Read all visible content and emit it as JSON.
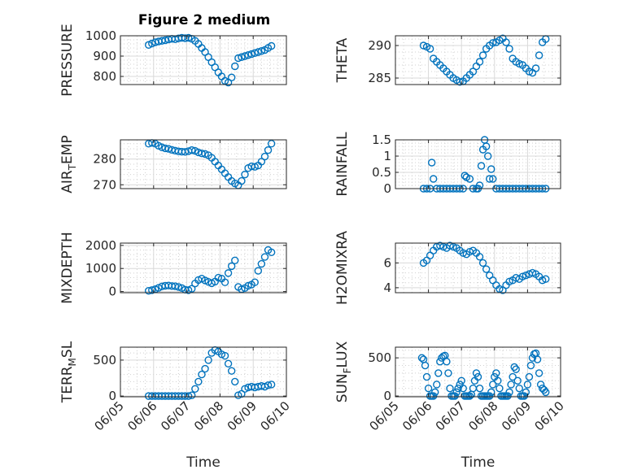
{
  "figure": {
    "title": "Figure 2 medium",
    "marker_color": "#0072BD",
    "grid": true,
    "minor_grid": true
  },
  "chart_data": [
    {
      "type": "scatter",
      "id": "pressure",
      "ylabel": "PRESSURE",
      "ylabel_sub": "",
      "ylabel_tail": "",
      "xlabel": "",
      "title": "Figure 2 medium",
      "ylim": [
        760,
        1000
      ],
      "yticks": [
        800,
        900,
        1000
      ],
      "ytick_labels": [
        "800",
        "900",
        "1000"
      ],
      "show_xticks": false,
      "x": [
        5.85,
        5.95,
        6.05,
        6.15,
        6.25,
        6.35,
        6.45,
        6.55,
        6.65,
        6.75,
        6.85,
        6.95,
        7.05,
        7.15,
        7.25,
        7.35,
        7.45,
        7.55,
        7.65,
        7.75,
        7.85,
        7.95,
        8.05,
        8.15,
        8.25,
        8.35,
        8.45,
        8.55,
        8.65,
        8.75,
        8.85,
        8.95,
        9.05,
        9.15,
        9.25,
        9.35,
        9.45,
        9.55
      ],
      "y": [
        955,
        962,
        968,
        972,
        975,
        978,
        982,
        985,
        983,
        987,
        990,
        988,
        990,
        985,
        975,
        960,
        940,
        920,
        895,
        870,
        845,
        820,
        800,
        778,
        770,
        795,
        850,
        890,
        895,
        900,
        905,
        910,
        915,
        920,
        925,
        930,
        940,
        950
      ]
    },
    {
      "type": "scatter",
      "id": "theta",
      "ylabel": "THETA",
      "ylabel_sub": "",
      "ylabel_tail": "",
      "xlabel": "",
      "ylim": [
        284,
        291.5
      ],
      "yticks": [
        285,
        290
      ],
      "ytick_labels": [
        "285",
        "290"
      ],
      "show_xticks": false,
      "x": [
        5.85,
        5.95,
        6.05,
        6.15,
        6.25,
        6.35,
        6.45,
        6.55,
        6.65,
        6.75,
        6.85,
        6.95,
        7.05,
        7.15,
        7.25,
        7.35,
        7.45,
        7.55,
        7.65,
        7.75,
        7.85,
        7.95,
        8.05,
        8.15,
        8.25,
        8.35,
        8.45,
        8.55,
        8.65,
        8.75,
        8.85,
        8.95,
        9.05,
        9.15,
        9.25,
        9.35,
        9.45,
        9.55
      ],
      "y": [
        290,
        289.8,
        289.5,
        288,
        287.5,
        287,
        286.5,
        286,
        285.5,
        285,
        284.7,
        284.4,
        284.5,
        285,
        285.5,
        286,
        286.8,
        287.5,
        288.5,
        289.5,
        290,
        290.4,
        290.5,
        290.8,
        291.1,
        290.5,
        289.5,
        288,
        287.5,
        287.2,
        287,
        286.5,
        286,
        285.8,
        286.5,
        288.5,
        290.5,
        291
      ]
    },
    {
      "type": "scatter",
      "id": "air-temp",
      "ylabel": "AIR",
      "ylabel_sub": "T",
      "ylabel_tail": "EMP",
      "xlabel": "",
      "ylim": [
        268.5,
        287.5
      ],
      "yticks": [
        270,
        280
      ],
      "ytick_labels": [
        "270",
        "280"
      ],
      "show_xticks": false,
      "x": [
        5.85,
        5.95,
        6.05,
        6.15,
        6.25,
        6.35,
        6.45,
        6.55,
        6.65,
        6.75,
        6.85,
        6.95,
        7.05,
        7.15,
        7.25,
        7.35,
        7.45,
        7.55,
        7.65,
        7.75,
        7.85,
        7.95,
        8.05,
        8.15,
        8.25,
        8.35,
        8.45,
        8.55,
        8.65,
        8.75,
        8.85,
        8.95,
        9.05,
        9.15,
        9.25,
        9.35,
        9.45,
        9.55
      ],
      "y": [
        286,
        286.3,
        286,
        285.2,
        284.6,
        284.2,
        284,
        283.6,
        283.3,
        283,
        282.9,
        282.8,
        283.1,
        283.5,
        283.2,
        282.6,
        282.2,
        282,
        281.5,
        280.5,
        279,
        277.5,
        276,
        274.5,
        273,
        271.5,
        270.5,
        269.8,
        271.5,
        274,
        276.5,
        277.2,
        277,
        277.5,
        279,
        281,
        283.5,
        286
      ]
    },
    {
      "type": "scatter",
      "id": "rainfall",
      "ylabel": "RAINFALL",
      "ylabel_sub": "",
      "ylabel_tail": "",
      "xlabel": "",
      "ylim": [
        0,
        1.5
      ],
      "yticks": [
        0,
        0.5,
        1,
        1.5
      ],
      "ytick_labels": [
        "0",
        "0.5",
        "1",
        "1.5"
      ],
      "show_xticks": false,
      "x": [
        5.85,
        5.95,
        6.05,
        6.1,
        6.15,
        6.25,
        6.35,
        6.45,
        6.55,
        6.65,
        6.75,
        6.85,
        6.95,
        7.05,
        7.1,
        7.15,
        7.25,
        7.35,
        7.45,
        7.5,
        7.55,
        7.6,
        7.65,
        7.7,
        7.75,
        7.8,
        7.85,
        7.9,
        7.95,
        8.05,
        8.15,
        8.25,
        8.35,
        8.45,
        8.55,
        8.65,
        8.75,
        8.85,
        8.95,
        9.05,
        9.15,
        9.25,
        9.35,
        9.45,
        9.55
      ],
      "y": [
        0,
        0,
        0,
        0.8,
        0.3,
        0,
        0,
        0,
        0,
        0,
        0,
        0,
        0,
        0,
        0.4,
        0.35,
        0.3,
        0,
        0,
        0,
        0.1,
        0.7,
        1.2,
        1.5,
        1.3,
        1,
        0.3,
        0.6,
        0.3,
        0,
        0,
        0,
        0,
        0,
        0,
        0,
        0,
        0,
        0,
        0,
        0,
        0,
        0,
        0,
        0
      ]
    },
    {
      "type": "scatter",
      "id": "mixdepth",
      "ylabel": "MIXDEPTH",
      "ylabel_sub": "",
      "ylabel_tail": "",
      "xlabel": "",
      "ylim": [
        -50,
        2100
      ],
      "yticks": [
        0,
        1000,
        2000
      ],
      "ytick_labels": [
        "0",
        "1000",
        "2000"
      ],
      "show_xticks": false,
      "x": [
        5.85,
        5.95,
        6.05,
        6.15,
        6.25,
        6.35,
        6.45,
        6.55,
        6.65,
        6.75,
        6.85,
        6.95,
        7.05,
        7.15,
        7.25,
        7.35,
        7.45,
        7.55,
        7.65,
        7.75,
        7.85,
        7.95,
        8.05,
        8.15,
        8.25,
        8.35,
        8.45,
        8.55,
        8.65,
        8.75,
        8.85,
        8.95,
        9.05,
        9.15,
        9.25,
        9.35,
        9.45,
        9.55
      ],
      "y": [
        30,
        60,
        100,
        160,
        220,
        250,
        260,
        240,
        230,
        200,
        150,
        80,
        60,
        120,
        350,
        500,
        560,
        480,
        420,
        360,
        430,
        600,
        560,
        400,
        800,
        1100,
        1350,
        200,
        100,
        150,
        250,
        300,
        400,
        900,
        1200,
        1500,
        1800,
        1700
      ]
    },
    {
      "type": "scatter",
      "id": "h2omixra",
      "ylabel": "H2OMIXRA",
      "ylabel_sub": "",
      "ylabel_tail": "",
      "xlabel": "",
      "ylim": [
        3.6,
        7.6
      ],
      "yticks": [
        4,
        6
      ],
      "ytick_labels": [
        "4",
        "6"
      ],
      "show_xticks": false,
      "x": [
        5.85,
        5.95,
        6.05,
        6.15,
        6.25,
        6.35,
        6.45,
        6.55,
        6.65,
        6.75,
        6.85,
        6.95,
        7.05,
        7.15,
        7.25,
        7.35,
        7.45,
        7.55,
        7.65,
        7.75,
        7.85,
        7.95,
        8.05,
        8.15,
        8.25,
        8.35,
        8.45,
        8.55,
        8.65,
        8.75,
        8.85,
        8.95,
        9.05,
        9.15,
        9.25,
        9.35,
        9.45,
        9.55
      ],
      "y": [
        6,
        6.2,
        6.6,
        7,
        7.3,
        7.4,
        7.3,
        7.2,
        7.4,
        7.3,
        7.2,
        7,
        6.8,
        6.7,
        6.9,
        7,
        6.8,
        6.5,
        6,
        5.5,
        5,
        4.6,
        4.2,
        3.9,
        3.8,
        4.2,
        4.5,
        4.6,
        4.8,
        4.7,
        4.9,
        5,
        5.1,
        5.2,
        5.1,
        4.9,
        4.6,
        4.7
      ]
    },
    {
      "type": "scatter",
      "id": "terr-msl",
      "ylabel": "TERR",
      "ylabel_sub": "M",
      "ylabel_tail": "SL",
      "xlabel": "Time",
      "ylim": [
        -10,
        680
      ],
      "yticks": [
        0,
        500
      ],
      "ytick_labels": [
        "0",
        "500"
      ],
      "show_xticks": true,
      "x": [
        5.85,
        5.95,
        6.05,
        6.15,
        6.25,
        6.35,
        6.45,
        6.55,
        6.65,
        6.75,
        6.85,
        6.95,
        7.05,
        7.15,
        7.25,
        7.35,
        7.45,
        7.55,
        7.65,
        7.75,
        7.85,
        7.95,
        8.05,
        8.15,
        8.25,
        8.35,
        8.45,
        8.55,
        8.65,
        8.75,
        8.85,
        8.95,
        9.05,
        9.15,
        9.25,
        9.35,
        9.45,
        9.55
      ],
      "y": [
        0,
        0,
        0,
        0,
        0,
        0,
        0,
        0,
        0,
        0,
        0,
        0,
        0,
        10,
        100,
        200,
        300,
        380,
        500,
        600,
        640,
        620,
        580,
        560,
        450,
        350,
        200,
        10,
        30,
        100,
        120,
        130,
        120,
        130,
        140,
        130,
        150,
        160
      ]
    },
    {
      "type": "scatter",
      "id": "sun-flux",
      "ylabel": "SUN",
      "ylabel_sub": "F",
      "ylabel_tail": "LUX",
      "xlabel": "Time",
      "ylim": [
        -10,
        640
      ],
      "yticks": [
        0,
        500
      ],
      "ytick_labels": [
        "0",
        "500"
      ],
      "show_xticks": true,
      "x": [
        5.8,
        5.85,
        5.9,
        5.95,
        6.0,
        6.05,
        6.1,
        6.15,
        6.2,
        6.25,
        6.3,
        6.35,
        6.4,
        6.45,
        6.5,
        6.55,
        6.6,
        6.65,
        6.7,
        6.75,
        6.8,
        6.85,
        6.9,
        6.95,
        7.0,
        7.05,
        7.1,
        7.15,
        7.2,
        7.25,
        7.3,
        7.35,
        7.4,
        7.45,
        7.5,
        7.55,
        7.6,
        7.65,
        7.7,
        7.75,
        7.8,
        7.85,
        7.9,
        7.95,
        8.0,
        8.05,
        8.1,
        8.15,
        8.2,
        8.25,
        8.3,
        8.35,
        8.4,
        8.45,
        8.5,
        8.55,
        8.6,
        8.65,
        8.7,
        8.75,
        8.8,
        8.85,
        8.9,
        8.95,
        9.0,
        9.05,
        9.1,
        9.15,
        9.2,
        9.25,
        9.3,
        9.35,
        9.4,
        9.45,
        9.5,
        9.55
      ],
      "y": [
        500,
        480,
        400,
        250,
        100,
        0,
        0,
        0,
        50,
        150,
        300,
        450,
        500,
        520,
        530,
        450,
        300,
        100,
        0,
        0,
        0,
        50,
        100,
        150,
        200,
        100,
        0,
        0,
        0,
        0,
        20,
        100,
        200,
        300,
        250,
        100,
        0,
        0,
        0,
        0,
        0,
        0,
        50,
        150,
        250,
        300,
        200,
        100,
        0,
        0,
        0,
        0,
        0,
        50,
        150,
        250,
        380,
        350,
        200,
        100,
        0,
        0,
        0,
        50,
        150,
        250,
        400,
        500,
        550,
        560,
        480,
        300,
        150,
        100,
        80,
        50
      ]
    }
  ],
  "x_axis": {
    "range": [
      5,
      10
    ],
    "ticks": [
      5,
      6,
      7,
      8,
      9,
      10
    ],
    "tick_labels": [
      "06/05",
      "06/06",
      "06/07",
      "06/08",
      "06/09",
      "06/10"
    ]
  }
}
